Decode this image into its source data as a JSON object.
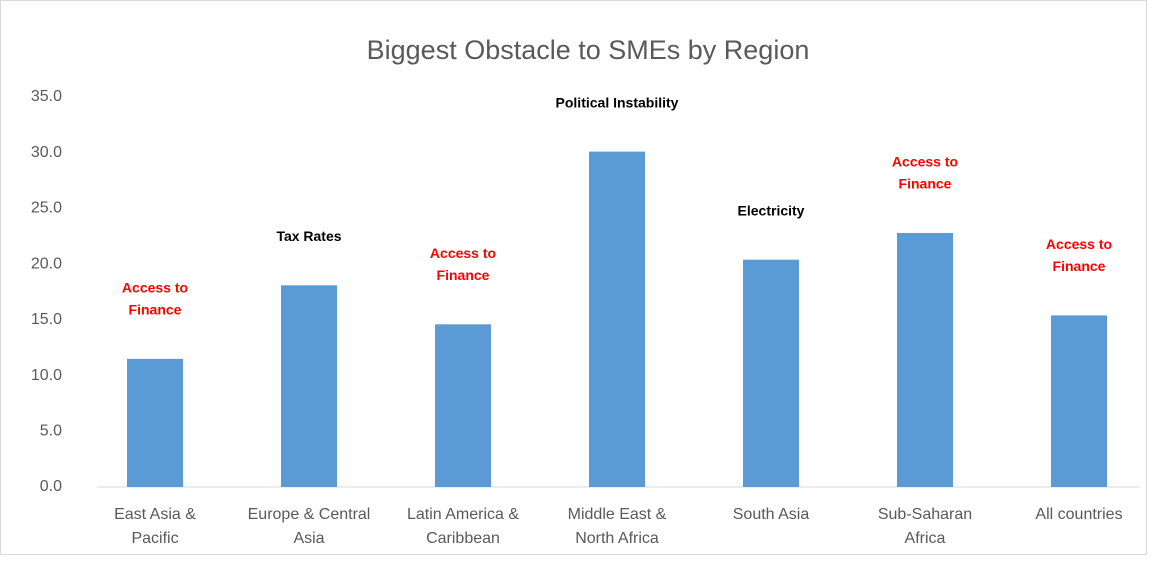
{
  "chart_data": {
    "type": "bar",
    "title": "Biggest Obstacle to SMEs by Region",
    "categories": [
      [
        "East Asia &",
        "Pacific"
      ],
      [
        "Europe & Central",
        "Asia"
      ],
      [
        "Latin America &",
        "Caribbean"
      ],
      [
        "Middle East &",
        "North Africa"
      ],
      [
        "South Asia"
      ],
      [
        "Sub-Saharan",
        "Africa"
      ],
      [
        "All countries"
      ]
    ],
    "values": [
      11.5,
      18.1,
      14.6,
      30.1,
      20.4,
      22.8,
      15.4
    ],
    "color": "#5b9bd5",
    "annotations": [
      {
        "lines": [
          "Access to",
          "Finance"
        ],
        "color": "#ff0000"
      },
      {
        "lines": [
          "Tax Rates"
        ],
        "color": "#000000"
      },
      {
        "lines": [
          "Access to",
          "Finance"
        ],
        "color": "#ff0000"
      },
      {
        "lines": [
          "Political Instability"
        ],
        "color": "#000000"
      },
      {
        "lines": [
          "Electricity"
        ],
        "color": "#000000"
      },
      {
        "lines": [
          "Access to",
          "Finance"
        ],
        "color": "#ff0000"
      },
      {
        "lines": [
          "Access to",
          "Finance"
        ],
        "color": "#ff0000"
      }
    ],
    "ylim": [
      0,
      35
    ],
    "yticks": [
      {
        "value": 0,
        "label": "0.0"
      },
      {
        "value": 5,
        "label": "5.0"
      },
      {
        "value": 10,
        "label": "10.0"
      },
      {
        "value": 15,
        "label": "15.0"
      },
      {
        "value": 20,
        "label": "20.0"
      },
      {
        "value": 25,
        "label": "25.0"
      },
      {
        "value": 30,
        "label": "30.0"
      },
      {
        "value": 35,
        "label": "35.0"
      }
    ],
    "grid": false
  }
}
